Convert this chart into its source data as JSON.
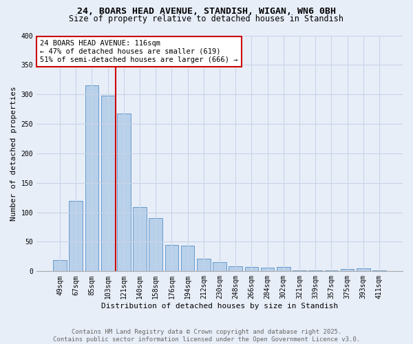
{
  "title_line1": "24, BOARS HEAD AVENUE, STANDISH, WIGAN, WN6 0BH",
  "title_line2": "Size of property relative to detached houses in Standish",
  "xlabel": "Distribution of detached houses by size in Standish",
  "ylabel": "Number of detached properties",
  "categories": [
    "49sqm",
    "67sqm",
    "85sqm",
    "103sqm",
    "121sqm",
    "140sqm",
    "158sqm",
    "176sqm",
    "194sqm",
    "212sqm",
    "230sqm",
    "248sqm",
    "266sqm",
    "284sqm",
    "302sqm",
    "321sqm",
    "339sqm",
    "357sqm",
    "375sqm",
    "393sqm",
    "411sqm"
  ],
  "values": [
    19,
    119,
    315,
    298,
    268,
    109,
    90,
    45,
    44,
    21,
    15,
    9,
    7,
    6,
    7,
    2,
    1,
    2,
    4,
    5,
    2
  ],
  "bar_color": "#b8d0ea",
  "bar_edge_color": "#6699cc",
  "red_line_color": "#cc0000",
  "annotation_text": "24 BOARS HEAD AVENUE: 116sqm\n← 47% of detached houses are smaller (619)\n51% of semi-detached houses are larger (666) →",
  "annotation_box_color": "#ffffff",
  "annotation_box_edge": "#cc0000",
  "ylim": [
    0,
    400
  ],
  "yticks": [
    0,
    50,
    100,
    150,
    200,
    250,
    300,
    350,
    400
  ],
  "grid_color": "#c8d4e8",
  "background_color": "#e8eef8",
  "plot_background": "#e8eef8",
  "footer_line1": "Contains HM Land Registry data © Crown copyright and database right 2025.",
  "footer_line2": "Contains public sector information licensed under the Open Government Licence v3.0.",
  "title_fontsize": 9.5,
  "subtitle_fontsize": 8.5,
  "axis_label_fontsize": 8,
  "tick_fontsize": 7,
  "annotation_fontsize": 7.5,
  "footer_fontsize": 6.5
}
